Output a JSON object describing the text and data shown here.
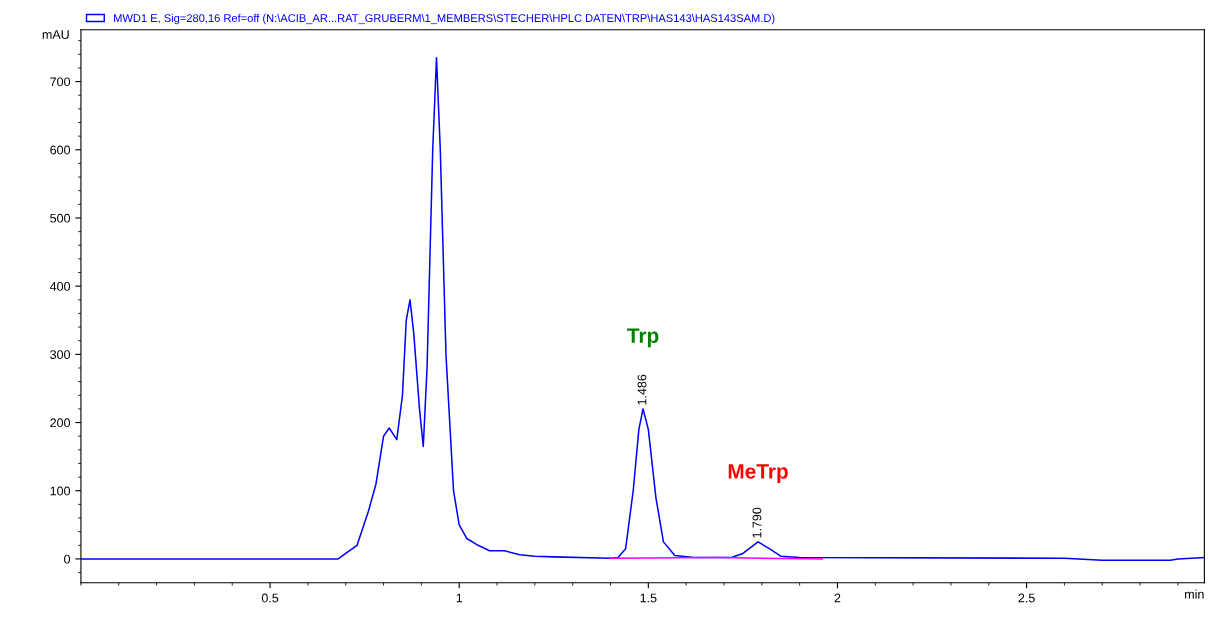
{
  "chart_data": {
    "type": "line",
    "xlabel": "min",
    "ylabel": "mAU",
    "series": [
      {
        "name": "MWD1 E, Sig=280,16 Ref=off (N:\\ACIB_AR...RAT_GRUBERM\\1_MEMBERS\\STECHER\\HPLC DATEN\\TRP\\HAS143\\HAS143SAM.D)",
        "color": "#0000ff",
        "x": [
          0,
          0.68,
          0.7,
          0.73,
          0.76,
          0.78,
          0.8,
          0.815,
          0.835,
          0.85,
          0.86,
          0.87,
          0.88,
          0.895,
          0.905,
          0.915,
          0.93,
          0.94,
          0.95,
          0.965,
          0.985,
          1.0,
          1.02,
          1.05,
          1.08,
          1.12,
          1.16,
          1.2,
          1.25,
          1.4,
          1.42,
          1.44,
          1.46,
          1.475,
          1.486,
          1.5,
          1.52,
          1.54,
          1.57,
          1.62,
          1.72,
          1.75,
          1.79,
          1.82,
          1.85,
          1.9,
          2.6,
          2.7,
          2.88,
          2.9,
          2.97
        ],
        "values": [
          0,
          0,
          8,
          20,
          70,
          110,
          180,
          192,
          175,
          240,
          350,
          380,
          330,
          220,
          165,
          280,
          600,
          735,
          600,
          300,
          100,
          50,
          30,
          20,
          12,
          12,
          6,
          4,
          3,
          1,
          2,
          15,
          100,
          190,
          220,
          190,
          90,
          25,
          5,
          2,
          2,
          8,
          25,
          15,
          4,
          2,
          1,
          -2,
          -2,
          0,
          2
        ]
      },
      {
        "color": "#ff00ff",
        "x": [
          1.4,
          1.68,
          1.96
        ],
        "values": [
          1,
          2,
          0
        ]
      }
    ],
    "annotations": [
      "Trp",
      "MeTrp",
      {
        "text": "1.486",
        "x": 1.486,
        "y": 225
      },
      {
        "text": "1.790",
        "x": 1.79,
        "y": 30
      }
    ],
    "xlim": [
      0,
      2.97
    ],
    "ylim": [
      -35,
      776
    ],
    "xticks": [
      0.5,
      1,
      1.5,
      2,
      2.5
    ],
    "yticks": [
      0,
      100,
      200,
      300,
      400,
      500,
      600,
      700
    ],
    "grid": false,
    "legend": "top left"
  }
}
